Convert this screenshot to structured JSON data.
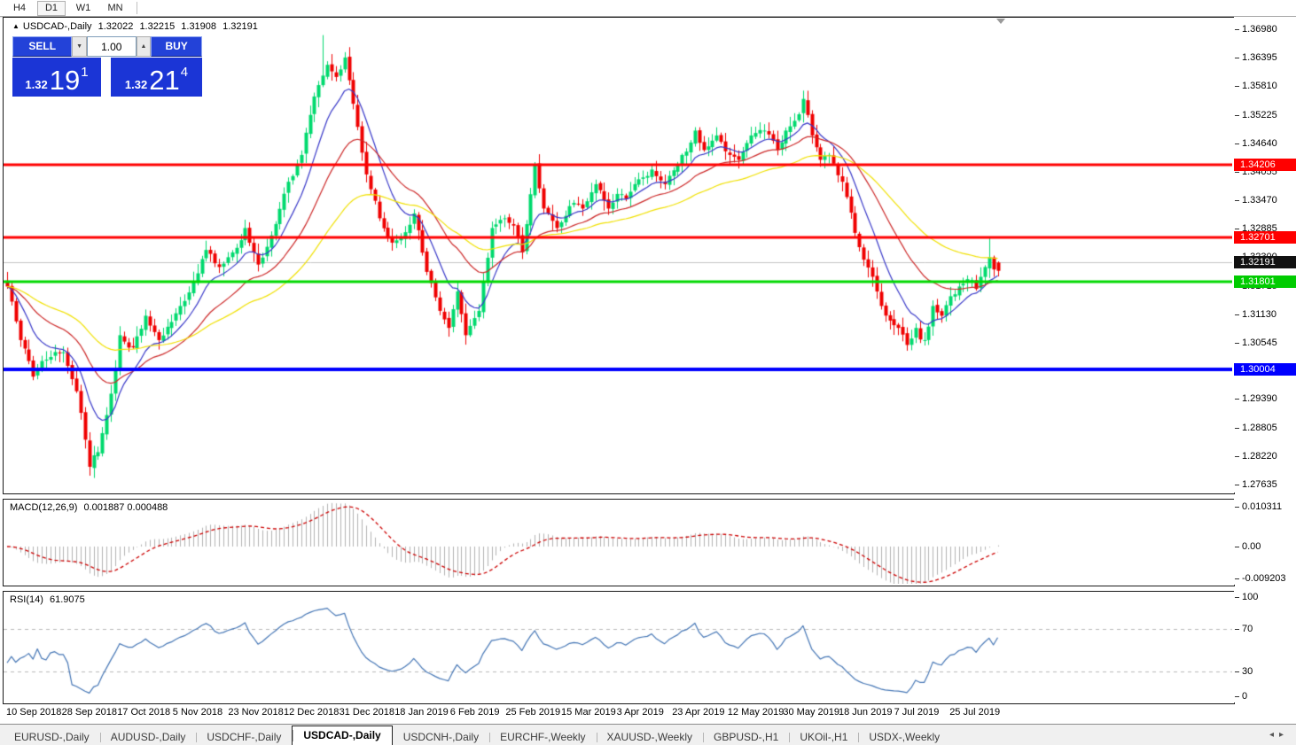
{
  "toolbar": {
    "timeframes": [
      {
        "label": "H4",
        "active": false
      },
      {
        "label": "D1",
        "active": true
      },
      {
        "label": "W1",
        "active": false
      },
      {
        "label": "MN",
        "active": false
      }
    ]
  },
  "chart_header": {
    "collapse_icon": "up-triangle",
    "symbol_period": "USDCAD-,Daily",
    "open": "1.32022",
    "high": "1.32215",
    "low": "1.31908",
    "close": "1.32191"
  },
  "one_click": {
    "sell_label": "SELL",
    "buy_label": "BUY",
    "volume": "1.00",
    "spin_down_icon": "▼",
    "spin_up_icon": "▲",
    "sell_price_small": "1.32",
    "sell_price_big": "19",
    "sell_price_sup": "1",
    "buy_price_small": "1.32",
    "buy_price_big": "21",
    "buy_price_sup": "4"
  },
  "chart_data": {
    "type": "candlestick",
    "symbol": "USDCAD-",
    "timeframe": "Daily",
    "title": "USDCAD-,Daily",
    "current_ohlc": {
      "open": 1.32022,
      "high": 1.32215,
      "low": 1.31908,
      "close": 1.32191
    },
    "bars_count": 230,
    "ylim": [
      1.27635,
      1.3698
    ],
    "y_axis_ticks": [
      "1.36980",
      "1.36395",
      "1.35810",
      "1.35225",
      "1.34640",
      "1.34055",
      "1.33470",
      "1.32885",
      "1.32300",
      "1.31715",
      "1.31130",
      "1.30545",
      "1.29960",
      "1.29390",
      "1.28805",
      "1.28220",
      "1.27635"
    ],
    "x_axis_labels": [
      "10 Sep 2018",
      "28 Sep 2018",
      "17 Oct 2018",
      "5 Nov 2018",
      "23 Nov 2018",
      "12 Dec 2018",
      "31 Dec 2018",
      "18 Jan 2019",
      "6 Feb 2019",
      "25 Feb 2019",
      "15 Mar 2019",
      "3 Apr 2019",
      "23 Apr 2019",
      "12 May 2019",
      "30 May 2019",
      "18 Jun 2019",
      "7 Jul 2019",
      "25 Jul 2019"
    ],
    "price_axis_levels": [
      {
        "label": "1.34206",
        "price": 1.34206,
        "bg": "#ff0000",
        "fg": "#ffffff",
        "line_color": "#ff0000",
        "line_width": 3
      },
      {
        "label": "1.32701",
        "price": 1.32701,
        "bg": "#ff0000",
        "fg": "#ffffff",
        "line_color": "#ff0000",
        "line_width": 3
      },
      {
        "label": "1.32191",
        "price": 1.32191,
        "bg": "#111111",
        "fg": "#ffffff",
        "line_color": "#c4c4c4",
        "line_width": 1
      },
      {
        "label": "1.31801",
        "price": 1.31801,
        "bg": "#00cc00",
        "fg": "#ffffff",
        "line_color": "#00d800",
        "line_width": 3
      },
      {
        "label": "1.30004",
        "price": 1.30004,
        "bg": "#0000ff",
        "fg": "#ffffff",
        "line_color": "#0000ff",
        "line_width": 4
      }
    ],
    "candle_colors": {
      "bull": "#00d96e",
      "bear": "#ef0000"
    },
    "moving_averages": [
      {
        "period": 10,
        "color": "#3838c8"
      },
      {
        "period": 25,
        "color": "#cc2828"
      },
      {
        "period": 52,
        "color": "#f0e000"
      }
    ],
    "close_path_anchors": [
      [
        0,
        1.317
      ],
      [
        3,
        1.306
      ],
      [
        6,
        1.2985
      ],
      [
        9,
        1.302
      ],
      [
        13,
        1.3035
      ],
      [
        16,
        1.2955
      ],
      [
        19,
        1.28
      ],
      [
        21,
        1.283
      ],
      [
        24,
        1.295
      ],
      [
        26,
        1.307
      ],
      [
        29,
        1.3045
      ],
      [
        32,
        1.311
      ],
      [
        35,
        1.306
      ],
      [
        39,
        1.3115
      ],
      [
        43,
        1.318
      ],
      [
        46,
        1.3245
      ],
      [
        49,
        1.321
      ],
      [
        52,
        1.324
      ],
      [
        55,
        1.329
      ],
      [
        58,
        1.3215
      ],
      [
        61,
        1.3275
      ],
      [
        65,
        1.3385
      ],
      [
        68,
        1.344
      ],
      [
        71,
        1.356
      ],
      [
        74,
        1.3625
      ],
      [
        76,
        1.36
      ],
      [
        78,
        1.364
      ],
      [
        80,
        1.3545
      ],
      [
        83,
        1.34
      ],
      [
        86,
        1.331
      ],
      [
        89,
        1.326
      ],
      [
        91,
        1.327
      ],
      [
        94,
        1.332
      ],
      [
        97,
        1.32
      ],
      [
        100,
        1.312
      ],
      [
        102,
        1.3085
      ],
      [
        104,
        1.316
      ],
      [
        106,
        1.307
      ],
      [
        109,
        1.312
      ],
      [
        112,
        1.329
      ],
      [
        115,
        1.331
      ],
      [
        117,
        1.3295
      ],
      [
        119,
        1.324
      ],
      [
        122,
        1.342
      ],
      [
        124,
        1.333
      ],
      [
        127,
        1.329
      ],
      [
        130,
        1.3335
      ],
      [
        133,
        1.333
      ],
      [
        136,
        1.338
      ],
      [
        139,
        1.333
      ],
      [
        141,
        1.336
      ],
      [
        143,
        1.335
      ],
      [
        146,
        1.339
      ],
      [
        149,
        1.341
      ],
      [
        152,
        1.338
      ],
      [
        156,
        1.344
      ],
      [
        159,
        1.349
      ],
      [
        161,
        1.345
      ],
      [
        164,
        1.348
      ],
      [
        167,
        1.344
      ],
      [
        169,
        1.343
      ],
      [
        172,
        1.348
      ],
      [
        175,
        1.349
      ],
      [
        178,
        1.345
      ],
      [
        180,
        1.349
      ],
      [
        182,
        1.351
      ],
      [
        184,
        1.3555
      ],
      [
        186,
        1.348
      ],
      [
        188,
        1.343
      ],
      [
        190,
        1.344
      ],
      [
        193,
        1.3385
      ],
      [
        196,
        1.328
      ],
      [
        198,
        1.3225
      ],
      [
        200,
        1.319
      ],
      [
        202,
        1.313
      ],
      [
        204,
        1.31
      ],
      [
        206,
        1.3085
      ],
      [
        208,
        1.305
      ],
      [
        210,
        1.3085
      ],
      [
        212,
        1.306
      ],
      [
        214,
        1.313
      ],
      [
        216,
        1.311
      ],
      [
        218,
        1.315
      ],
      [
        220,
        1.317
      ],
      [
        222,
        1.3185
      ],
      [
        224,
        1.3165
      ],
      [
        226,
        1.321
      ],
      [
        227,
        1.323
      ],
      [
        228,
        1.3205
      ],
      [
        229,
        1.32191
      ]
    ],
    "wick_overrides": [
      [
        20,
        "low",
        1.2777
      ],
      [
        73,
        "high",
        1.3686
      ],
      [
        227,
        "high",
        1.3272
      ]
    ],
    "indicators": {
      "macd": {
        "label": "MACD(12,26,9)",
        "values_text": "0.001887 0.000488",
        "fast": 12,
        "slow": 26,
        "signal": 9,
        "axis_labels": [
          "0.010311",
          "0.00",
          "-0.009203"
        ],
        "histogram_color": "#b2b2b2",
        "signal_color": "#cc0000"
      },
      "rsi": {
        "label": "RSI(14)",
        "period": 14,
        "value_text": "61.9075",
        "axis_labels": [
          "100",
          "70",
          "30",
          "0"
        ],
        "levels": [
          70,
          30
        ],
        "line_color": "#4576b5"
      }
    }
  },
  "tabs": {
    "items": [
      {
        "label": "EURUSD-,Daily",
        "active": false
      },
      {
        "label": "AUDUSD-,Daily",
        "active": false
      },
      {
        "label": "USDCHF-,Daily",
        "active": false
      },
      {
        "label": "USDCAD-,Daily",
        "active": true
      },
      {
        "label": "USDCNH-,Daily",
        "active": false
      },
      {
        "label": "EURCHF-,Weekly",
        "active": false
      },
      {
        "label": "XAUUSD-,Weekly",
        "active": false
      },
      {
        "label": "GBPUSD-,H1",
        "active": false
      },
      {
        "label": "UKOil-,H1",
        "active": false
      },
      {
        "label": "USDX-,Weekly",
        "active": false
      }
    ],
    "scroll_left_icon": "◂",
    "scroll_right_icon": "▸"
  }
}
